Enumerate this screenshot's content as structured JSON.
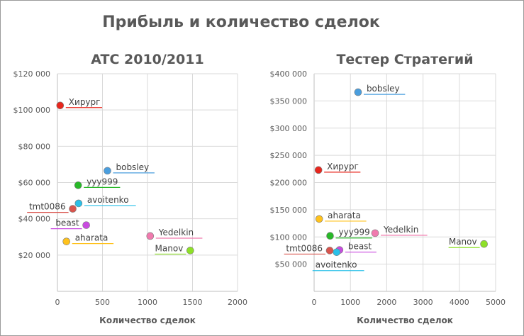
{
  "title": "Прибыль и количество сделок",
  "chart_data": [
    {
      "type": "scatter",
      "title": "ATC 2010/2011",
      "xlabel": "Количество сделок",
      "ylabel": "",
      "xlim": [
        0,
        2000
      ],
      "ylim": [
        0,
        120000
      ],
      "x_ticks": [
        "0",
        "500",
        "1000",
        "1500",
        "2000"
      ],
      "y_ticks": [
        "$20 000",
        "$40 000",
        "$60 000",
        "$80 000",
        "$100 000",
        "$120 000"
      ],
      "grid": true,
      "points": [
        {
          "label": "Хирург",
          "x": 30,
          "y": 102500,
          "color": "#e8261d",
          "label_side": "right"
        },
        {
          "label": "bobsley",
          "x": 555,
          "y": 66500,
          "color": "#4a9ede",
          "label_side": "right"
        },
        {
          "label": "yyy999",
          "x": 230,
          "y": 58500,
          "color": "#28b828",
          "label_side": "right"
        },
        {
          "label": "avoitenko",
          "x": 235,
          "y": 48500,
          "color": "#2ac0e8",
          "label_side": "right"
        },
        {
          "label": "tmt0086",
          "x": 170,
          "y": 45500,
          "color": "#d9544d",
          "label_side": "left"
        },
        {
          "label": "beast",
          "x": 320,
          "y": 36500,
          "color": "#c94be0",
          "label_side": "left"
        },
        {
          "label": "aharata",
          "x": 100,
          "y": 27500,
          "color": "#ffc21c",
          "label_side": "right"
        },
        {
          "label": "Yedelkin",
          "x": 1030,
          "y": 30500,
          "color": "#f07aae",
          "label_side": "right"
        },
        {
          "label": "Manov",
          "x": 1475,
          "y": 22500,
          "color": "#8ee028",
          "label_side": "left"
        }
      ]
    },
    {
      "type": "scatter",
      "title": "Тестер Стратегий",
      "xlabel": "Количество сделок",
      "ylabel": "",
      "xlim": [
        0,
        5000
      ],
      "ylim": [
        0,
        400000
      ],
      "x_ticks": [
        "0",
        "1000",
        "2000",
        "3000",
        "4000",
        "5000"
      ],
      "y_ticks": [
        "$50 000",
        "$100 000",
        "$150 000",
        "$200 000",
        "$250 000",
        "$300 000",
        "$350 000",
        "$400 000"
      ],
      "grid": true,
      "points": [
        {
          "label": "bobsley",
          "x": 1210,
          "y": 366000,
          "color": "#4a9ede",
          "label_side": "right"
        },
        {
          "label": "Хирург",
          "x": 120,
          "y": 223000,
          "color": "#e8261d",
          "label_side": "right"
        },
        {
          "label": "aharata",
          "x": 140,
          "y": 133000,
          "color": "#ffc21c",
          "label_side": "right"
        },
        {
          "label": "yyy999",
          "x": 440,
          "y": 102000,
          "color": "#28b828",
          "label_side": "right"
        },
        {
          "label": "Yedelkin",
          "x": 1680,
          "y": 107000,
          "color": "#f07aae",
          "label_side": "right"
        },
        {
          "label": "Manov",
          "x": 4680,
          "y": 87000,
          "color": "#8ee028",
          "label_side": "left"
        },
        {
          "label": "beast",
          "x": 700,
          "y": 76000,
          "color": "#c94be0",
          "label_side": "right"
        },
        {
          "label": "tmt0086",
          "x": 430,
          "y": 75000,
          "color": "#d9544d",
          "label_side": "left"
        },
        {
          "label": "avoitenko",
          "x": 620,
          "y": 72000,
          "color": "#2ac0e8",
          "label_side": "below"
        }
      ]
    }
  ]
}
